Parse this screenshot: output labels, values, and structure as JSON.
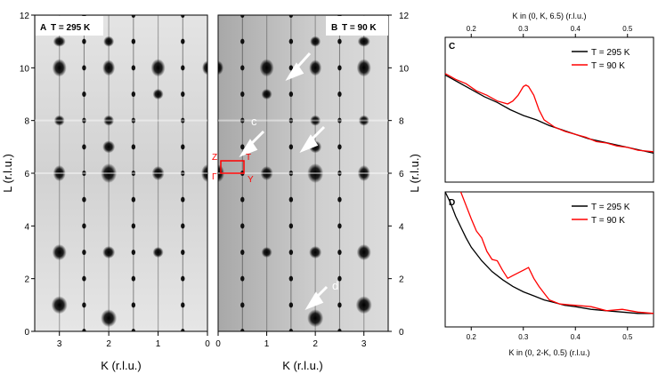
{
  "colors": {
    "t295": "#000000",
    "t90": "#ff0000",
    "arrow": "#ffffff",
    "box": "#ff0000"
  },
  "maps": {
    "panelA": {
      "label": "A",
      "title": "T = 295 K",
      "k_ticks": [
        "3",
        "2",
        "1",
        "0"
      ],
      "xlabel": "K (r.l.u.)"
    },
    "panelB": {
      "label": "B",
      "title": "T = 90 K",
      "k_ticks": [
        "0",
        "1",
        "2",
        "3"
      ],
      "xlabel": "K (r.l.u.)",
      "annotations": {
        "c": "c",
        "d": "d",
        "Z": "Z",
        "T": "T",
        "G": "Γ",
        "Y": "Y"
      }
    },
    "l_ticks": [
      "0",
      "2",
      "4",
      "6",
      "8",
      "10",
      "12"
    ],
    "ylabel": "L (r.l.u.)",
    "k_range": [
      0,
      3.5
    ],
    "l_range": [
      0,
      12
    ]
  },
  "chart_data": [
    {
      "type": "line",
      "panel": "C",
      "xlabel": "K in (0, K, 6.5) (r.l.u.)",
      "x_ticks": [
        "0.2",
        "0.3",
        "0.4",
        "0.5"
      ],
      "xlim": [
        0.15,
        0.55
      ],
      "ylim": [
        0,
        1
      ],
      "legend_position": "top-right",
      "series": [
        {
          "name": "T = 295 K",
          "x": [
            0.15,
            0.175,
            0.2,
            0.225,
            0.25,
            0.275,
            0.3,
            0.325,
            0.35,
            0.375,
            0.4,
            0.425,
            0.45,
            0.475,
            0.5,
            0.525,
            0.55
          ],
          "values": [
            0.74,
            0.69,
            0.64,
            0.59,
            0.55,
            0.5,
            0.46,
            0.43,
            0.39,
            0.36,
            0.33,
            0.3,
            0.28,
            0.26,
            0.24,
            0.22,
            0.2
          ]
        },
        {
          "name": "T = 90 K",
          "x": [
            0.15,
            0.17,
            0.19,
            0.21,
            0.23,
            0.25,
            0.27,
            0.28,
            0.29,
            0.3,
            0.305,
            0.31,
            0.32,
            0.33,
            0.34,
            0.36,
            0.38,
            0.4,
            0.42,
            0.44,
            0.46,
            0.48,
            0.5,
            0.52,
            0.55
          ],
          "values": [
            0.75,
            0.71,
            0.68,
            0.63,
            0.6,
            0.56,
            0.54,
            0.56,
            0.6,
            0.66,
            0.67,
            0.66,
            0.6,
            0.5,
            0.43,
            0.38,
            0.35,
            0.33,
            0.31,
            0.28,
            0.27,
            0.25,
            0.24,
            0.22,
            0.21
          ]
        }
      ]
    },
    {
      "type": "line",
      "panel": "D",
      "xlabel": "K in (0, 2-K, 0.5) (r.l.u.)",
      "x_ticks": [
        "0.2",
        "0.3",
        "0.4",
        "0.5"
      ],
      "xlim": [
        0.15,
        0.55
      ],
      "ylim": [
        0,
        1
      ],
      "legend_position": "top-right",
      "series": [
        {
          "name": "T = 295 K",
          "x": [
            0.15,
            0.16,
            0.17,
            0.18,
            0.19,
            0.2,
            0.22,
            0.24,
            0.26,
            0.28,
            0.3,
            0.32,
            0.34,
            0.36,
            0.38,
            0.4,
            0.43,
            0.46,
            0.49,
            0.52,
            0.55
          ],
          "values": [
            1.02,
            0.92,
            0.82,
            0.74,
            0.66,
            0.59,
            0.49,
            0.41,
            0.35,
            0.3,
            0.26,
            0.23,
            0.2,
            0.18,
            0.16,
            0.15,
            0.13,
            0.12,
            0.11,
            0.1,
            0.1
          ]
        },
        {
          "name": "T = 90 K",
          "x": [
            0.18,
            0.19,
            0.2,
            0.21,
            0.22,
            0.23,
            0.24,
            0.25,
            0.26,
            0.27,
            0.28,
            0.29,
            0.3,
            0.31,
            0.32,
            0.33,
            0.34,
            0.35,
            0.37,
            0.4,
            0.43,
            0.46,
            0.49,
            0.52,
            0.55
          ],
          "values": [
            1.02,
            0.9,
            0.8,
            0.71,
            0.66,
            0.56,
            0.5,
            0.49,
            0.42,
            0.36,
            0.38,
            0.4,
            0.42,
            0.44,
            0.36,
            0.3,
            0.25,
            0.2,
            0.17,
            0.16,
            0.15,
            0.12,
            0.13,
            0.11,
            0.1
          ]
        }
      ]
    }
  ]
}
